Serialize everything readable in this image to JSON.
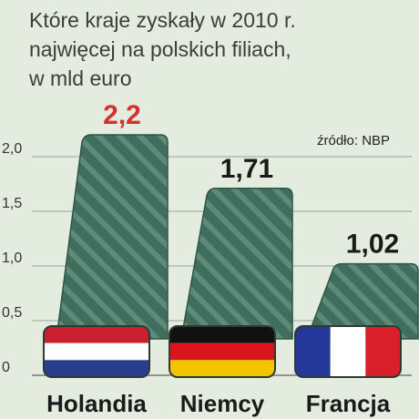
{
  "title_lines": [
    "Które kraje zyskały w 2010 r.",
    "najwięcej na polskich filiach,",
    "w mld euro"
  ],
  "source": "źródło: NBP",
  "colors": {
    "bar": "#3f6e5e",
    "bar_stripe": "#5d8a79",
    "highlight_label": "#d6312a",
    "label": "#1a1a1a",
    "background": "#e3ecdf"
  },
  "chart_data": {
    "type": "bar",
    "categories": [
      "Holandia",
      "Niemcy",
      "Francja"
    ],
    "values": [
      2.2,
      1.71,
      1.02
    ],
    "value_labels": [
      "2,2",
      "1,71",
      "1,02"
    ],
    "highlighted_index": 0,
    "y_ticks": [
      0,
      0.5,
      1.0,
      1.5,
      2.0
    ],
    "y_tick_labels": [
      "0",
      "0,5",
      "1,0",
      "1,5",
      "2,0"
    ],
    "ylim": [
      0,
      2.3
    ],
    "grid": true,
    "flags": [
      "netherlands-flag-icon",
      "germany-flag-icon",
      "france-flag-icon"
    ],
    "xlabel": "",
    "ylabel": ""
  }
}
